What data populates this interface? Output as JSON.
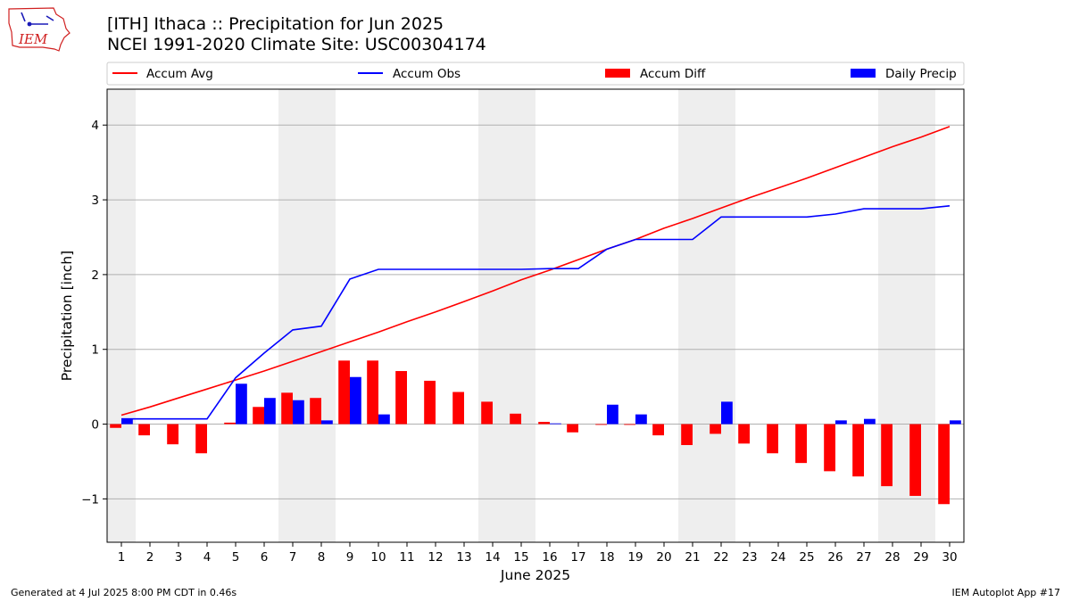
{
  "header": {
    "title_line1": "[ITH] Ithaca :: Precipitation for Jun 2025",
    "title_line2": "NCEI 1991-2020 Climate Site: USC00304174",
    "logo_text": "IEM"
  },
  "footer": {
    "left": "Generated at 4 Jul 2025 8:00 PM CDT in 0.46s",
    "right": "IEM Autoplot App #17"
  },
  "colors": {
    "avg": "#ff0000",
    "obs": "#0000ff",
    "diff": "#ff0000",
    "daily": "#0000ff",
    "weekend_shade": "#eeeeee",
    "grid": "#b0b0b0",
    "logo": "#d02020"
  },
  "chart_data": {
    "type": "bar",
    "xlabel": "June 2025",
    "ylabel": "Precipitation [inch]",
    "ylim": [
      -1.58,
      4.48
    ],
    "yticks": [
      -1,
      0,
      1,
      2,
      3,
      4
    ],
    "grid": "horizontal",
    "legend_position": "top",
    "categories": [
      "1",
      "2",
      "3",
      "4",
      "5",
      "6",
      "7",
      "8",
      "9",
      "10",
      "11",
      "12",
      "13",
      "14",
      "15",
      "16",
      "17",
      "18",
      "19",
      "20",
      "21",
      "22",
      "23",
      "24",
      "25",
      "26",
      "27",
      "28",
      "29",
      "30"
    ],
    "shaded_weekend_days": [
      1,
      7,
      8,
      14,
      15,
      21,
      22,
      28,
      29
    ],
    "series": [
      {
        "name": "Accum Avg",
        "kind": "line",
        "values": [
          0.12,
          0.23,
          0.35,
          0.47,
          0.59,
          0.71,
          0.84,
          0.97,
          1.1,
          1.23,
          1.37,
          1.5,
          1.64,
          1.78,
          1.93,
          2.06,
          2.2,
          2.34,
          2.47,
          2.62,
          2.75,
          2.89,
          3.03,
          3.16,
          3.29,
          3.43,
          3.57,
          3.71,
          3.84,
          3.98
        ]
      },
      {
        "name": "Accum Obs",
        "kind": "line",
        "values": [
          0.07,
          0.07,
          0.07,
          0.07,
          0.62,
          0.95,
          1.26,
          1.31,
          1.94,
          2.07,
          2.07,
          2.07,
          2.07,
          2.07,
          2.07,
          2.08,
          2.08,
          2.34,
          2.47,
          2.47,
          2.47,
          2.77,
          2.77,
          2.77,
          2.77,
          2.81,
          2.88,
          2.88,
          2.88,
          2.92
        ]
      },
      {
        "name": "Accum Diff",
        "kind": "bar",
        "values": [
          -0.05,
          -0.15,
          -0.27,
          -0.39,
          0.02,
          0.23,
          0.42,
          0.35,
          0.85,
          0.85,
          0.71,
          0.58,
          0.43,
          0.3,
          0.14,
          0.03,
          -0.11,
          -0.01,
          -0.01,
          -0.15,
          -0.28,
          -0.13,
          -0.26,
          -0.39,
          -0.52,
          -0.63,
          -0.7,
          -0.83,
          -0.96,
          -1.07
        ]
      },
      {
        "name": "Daily Precip",
        "kind": "bar",
        "values": [
          0.07,
          0,
          0,
          0,
          0.54,
          0.35,
          0.32,
          0.05,
          0.63,
          0.13,
          0,
          0,
          0,
          0,
          0,
          0.01,
          0,
          0.26,
          0.13,
          0,
          0,
          0.3,
          0,
          0,
          0,
          0.05,
          0.07,
          0,
          0,
          0.05
        ]
      }
    ]
  }
}
